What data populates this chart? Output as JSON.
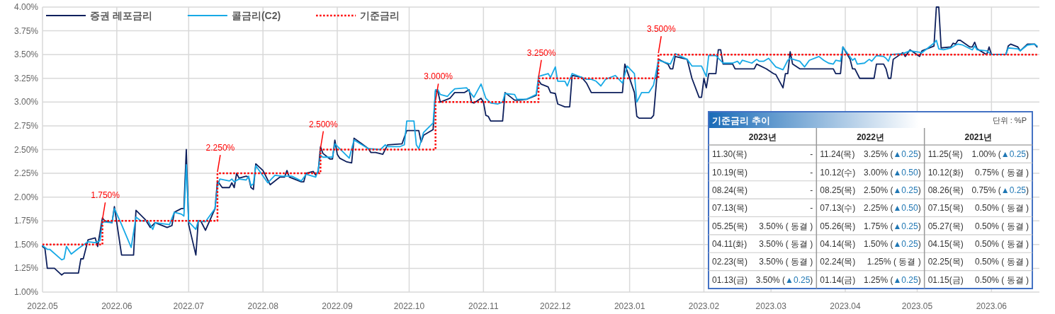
{
  "chart_data": [
    {
      "type": "line",
      "ylim": [
        1,
        4
      ],
      "yticks": [
        {
          "value": 1,
          "label": "1.00%"
        },
        {
          "value": 1.25,
          "label": "1.25%"
        },
        {
          "value": 1.5,
          "label": "1.50%"
        },
        {
          "value": 1.75,
          "label": "1.75%"
        },
        {
          "value": 2,
          "label": "2.00%"
        },
        {
          "value": 2.25,
          "label": "2.25%"
        },
        {
          "value": 2.5,
          "label": "2.50%"
        },
        {
          "value": 2.75,
          "label": "2.75%"
        },
        {
          "value": 3,
          "label": "3.00%"
        },
        {
          "value": 3.25,
          "label": "3.25%"
        },
        {
          "value": 3.5,
          "label": "3.50%"
        },
        {
          "value": 3.75,
          "label": "3.75%"
        },
        {
          "value": 4,
          "label": "4.00%"
        }
      ],
      "xlim": [
        "2022-05-01",
        "2023-06-21"
      ],
      "xticks": [
        {
          "value": "2022-05-01",
          "label": "2022.05"
        },
        {
          "value": "2022-06-01",
          "label": "2022.06"
        },
        {
          "value": "2022-07-01",
          "label": "2022.07"
        },
        {
          "value": "2022-08-01",
          "label": "2022.08"
        },
        {
          "value": "2022-09-01",
          "label": "2022.09"
        },
        {
          "value": "2022-10-01",
          "label": "2022.10"
        },
        {
          "value": "2022-11-01",
          "label": "2022.11"
        },
        {
          "value": "2022-12-01",
          "label": "2022.12"
        },
        {
          "value": "2023-01-01",
          "label": "2023.01"
        },
        {
          "value": "2023-02-01",
          "label": "2023.02"
        },
        {
          "value": "2023-03-01",
          "label": "2023.03"
        },
        {
          "value": "2023-04-01",
          "label": "2023.04"
        },
        {
          "value": "2023-05-01",
          "label": "2023.05"
        },
        {
          "value": "2023-06-01",
          "label": "2023.06"
        }
      ],
      "grid": true,
      "legend": "top left",
      "series": [
        {
          "name": "증권 레포금리",
          "color": "#0d1f5c",
          "x": [
            "2022-05-01",
            "2022-05-02",
            "2022-05-03",
            "2022-05-06",
            "2022-05-09",
            "2022-05-10",
            "2022-05-16",
            "2022-05-17",
            "2022-05-18",
            "2022-05-20",
            "2022-05-23",
            "2022-05-24",
            "2022-05-26",
            "2022-05-27",
            "2022-05-30",
            "2022-05-31",
            "2022-06-03",
            "2022-06-08",
            "2022-06-09",
            "2022-06-13",
            "2022-06-15",
            "2022-06-17",
            "2022-06-22",
            "2022-06-24",
            "2022-06-25",
            "2022-06-28",
            "2022-06-29",
            "2022-06-30",
            "2022-07-01",
            "2022-07-04",
            "2022-07-05",
            "2022-07-06",
            "2022-07-08",
            "2022-07-12",
            "2022-07-13",
            "2022-07-15",
            "2022-07-18",
            "2022-07-19",
            "2022-07-20",
            "2022-07-21",
            "2022-07-22",
            "2022-07-25",
            "2022-07-26",
            "2022-07-27",
            "2022-07-28",
            "2022-07-29",
            "2022-08-01",
            "2022-08-04",
            "2022-08-08",
            "2022-08-10",
            "2022-08-11",
            "2022-08-12",
            "2022-08-17",
            "2022-08-18",
            "2022-08-19",
            "2022-08-22",
            "2022-08-23",
            "2022-08-24",
            "2022-08-25",
            "2022-08-26",
            "2022-08-29",
            "2022-08-30",
            "2022-08-31",
            "2022-09-01",
            "2022-09-02",
            "2022-09-05",
            "2022-09-07",
            "2022-09-08",
            "2022-09-14",
            "2022-09-15",
            "2022-09-17",
            "2022-09-20",
            "2022-09-22",
            "2022-09-28",
            "2022-09-30",
            "2022-10-05",
            "2022-10-06",
            "2022-10-07",
            "2022-10-11",
            "2022-10-12",
            "2022-10-13",
            "2022-10-14",
            "2022-10-17",
            "2022-10-18",
            "2022-10-20",
            "2022-10-24",
            "2022-10-26",
            "2022-10-27",
            "2022-10-28",
            "2022-10-31",
            "2022-11-01",
            "2022-11-02",
            "2022-11-03",
            "2022-11-04",
            "2022-11-09",
            "2022-11-10",
            "2022-11-14",
            "2022-11-16",
            "2022-11-19",
            "2022-11-23",
            "2022-11-24",
            "2022-11-25",
            "2022-11-28",
            "2022-11-29",
            "2022-12-01",
            "2022-12-02",
            "2022-12-05",
            "2022-12-07",
            "2022-12-08",
            "2022-12-12",
            "2022-12-14",
            "2022-12-16",
            "2022-12-29",
            "2022-12-30",
            "2023-01-03",
            "2023-01-04",
            "2023-01-05",
            "2023-01-10",
            "2023-01-11",
            "2023-01-13",
            "2023-01-17",
            "2023-01-18",
            "2023-01-19",
            "2023-01-20",
            "2023-01-25",
            "2023-01-27",
            "2023-01-30",
            "2023-01-31",
            "2023-02-01",
            "2023-02-02",
            "2023-02-03",
            "2023-02-06",
            "2023-02-07",
            "2023-02-08",
            "2023-02-09",
            "2023-02-13",
            "2023-02-14",
            "2023-02-22",
            "2023-02-23",
            "2023-02-27",
            "2023-03-02",
            "2023-03-03",
            "2023-03-06",
            "2023-03-07",
            "2023-03-08",
            "2023-03-09",
            "2023-03-10",
            "2023-03-13",
            "2023-03-27",
            "2023-03-28",
            "2023-03-30",
            "2023-03-31",
            "2023-04-03",
            "2023-04-04",
            "2023-04-05",
            "2023-04-07",
            "2023-04-13",
            "2023-04-14",
            "2023-04-17",
            "2023-04-18",
            "2023-04-19",
            "2023-04-20",
            "2023-04-21",
            "2023-04-25",
            "2023-04-26",
            "2023-04-28",
            "2023-05-02",
            "2023-05-03",
            "2023-05-08",
            "2023-05-09",
            "2023-05-10",
            "2023-05-11",
            "2023-05-15",
            "2023-05-16",
            "2023-05-17",
            "2023-05-18",
            "2023-05-19",
            "2023-05-23",
            "2023-05-24",
            "2023-05-25",
            "2023-05-26",
            "2023-05-30",
            "2023-05-31",
            "2023-06-01",
            "2023-06-02",
            "2023-06-07",
            "2023-06-08",
            "2023-06-09",
            "2023-06-12",
            "2023-06-13",
            "2023-06-16",
            "2023-06-19",
            "2023-06-20"
          ],
          "values": [
            1.48,
            1.46,
            1.25,
            1.25,
            1.18,
            1.2,
            1.2,
            1.35,
            1.35,
            1.55,
            1.57,
            1.48,
            1.78,
            1.75,
            1.73,
            1.9,
            1.39,
            1.39,
            1.86,
            1.76,
            1.68,
            1.73,
            1.68,
            1.7,
            1.84,
            1.88,
            1.88,
            2.5,
            1.71,
            1.39,
            1.75,
            1.75,
            1.65,
            1.88,
            2.17,
            2.1,
            2.1,
            2.15,
            2.1,
            2.25,
            2.2,
            2.22,
            2.21,
            2.1,
            2.08,
            2.35,
            2.28,
            2.13,
            2.21,
            2.21,
            2.28,
            2.21,
            2.16,
            2.16,
            2.25,
            2.27,
            2.23,
            2.26,
            2.53,
            2.46,
            2.4,
            2.4,
            2.6,
            2.45,
            2.41,
            2.37,
            2.36,
            2.62,
            2.51,
            2.47,
            2.47,
            2.45,
            2.55,
            2.56,
            2.7,
            2.7,
            2.58,
            2.65,
            2.71,
            3.12,
            3.11,
            3.0,
            3.03,
            3.04,
            3.1,
            3.1,
            3.13,
            3.0,
            2.99,
            3.04,
            3.0,
            2.86,
            2.85,
            2.8,
            2.8,
            3.1,
            3.02,
            3.02,
            3.03,
            3.07,
            3.23,
            3.19,
            3.16,
            3.1,
            3.09,
            2.98,
            2.95,
            2.95,
            3.28,
            3.26,
            3.2,
            3.1,
            3.1,
            3.4,
            3.1,
            2.85,
            2.83,
            2.83,
            2.86,
            3.45,
            3.4,
            3.35,
            3.35,
            3.48,
            3.45,
            3.25,
            3.05,
            3.05,
            3.25,
            3.15,
            3.3,
            3.3,
            3.55,
            3.55,
            3.4,
            3.4,
            3.35,
            3.35,
            3.4,
            3.35,
            3.3,
            3.29,
            3.15,
            3.3,
            3.3,
            3.53,
            3.4,
            3.35,
            3.35,
            3.3,
            3.3,
            3.58,
            3.45,
            3.35,
            3.35,
            3.25,
            3.25,
            3.4,
            3.4,
            3.35,
            3.25,
            3.25,
            3.45,
            3.52,
            3.48,
            3.55,
            3.48,
            3.54,
            3.59,
            4.0,
            4.0,
            3.57,
            3.58,
            3.62,
            3.61,
            3.65,
            3.65,
            3.58,
            3.58,
            3.63,
            3.56,
            3.5,
            3.58,
            3.5,
            3.5,
            3.5,
            3.59,
            3.61,
            3.58,
            3.54,
            3.61,
            3.61,
            3.58
          ]
        },
        {
          "name": "콜금리(C2)",
          "color": "#17a9e6",
          "x": [
            "2022-05-01",
            "2022-05-03",
            "2022-05-04",
            "2022-05-09",
            "2022-05-10",
            "2022-05-11",
            "2022-05-13",
            "2022-05-16",
            "2022-05-20",
            "2022-05-23",
            "2022-05-25",
            "2022-05-26",
            "2022-05-30",
            "2022-05-31",
            "2022-06-03",
            "2022-06-07",
            "2022-06-09",
            "2022-06-11",
            "2022-06-14",
            "2022-06-16",
            "2022-06-17",
            "2022-06-23",
            "2022-06-25",
            "2022-06-28",
            "2022-06-29",
            "2022-06-30",
            "2022-07-01",
            "2022-07-04",
            "2022-07-05",
            "2022-07-08",
            "2022-07-12",
            "2022-07-13",
            "2022-07-14",
            "2022-07-18",
            "2022-07-19",
            "2022-07-20",
            "2022-07-22",
            "2022-07-25",
            "2022-07-26",
            "2022-07-27",
            "2022-07-28",
            "2022-07-29",
            "2022-08-03",
            "2022-08-06",
            "2022-08-09",
            "2022-08-13",
            "2022-08-17",
            "2022-08-19",
            "2022-08-23",
            "2022-08-24",
            "2022-08-25",
            "2022-08-26",
            "2022-08-30",
            "2022-08-31",
            "2022-09-02",
            "2022-09-06",
            "2022-09-08",
            "2022-09-14",
            "2022-09-19",
            "2022-09-21",
            "2022-09-22",
            "2022-09-27",
            "2022-09-29",
            "2022-09-30",
            "2022-10-03",
            "2022-10-04",
            "2022-10-05",
            "2022-10-07",
            "2022-10-11",
            "2022-10-12",
            "2022-10-13",
            "2022-10-14",
            "2022-10-17",
            "2022-10-18",
            "2022-10-20",
            "2022-10-25",
            "2022-10-28",
            "2022-10-31",
            "2022-11-02",
            "2022-11-04",
            "2022-11-07",
            "2022-11-09",
            "2022-11-10",
            "2022-11-14",
            "2022-11-15",
            "2022-11-19",
            "2022-11-23",
            "2022-11-24",
            "2022-11-28",
            "2022-11-29",
            "2022-12-01",
            "2022-12-02",
            "2022-12-05",
            "2022-12-06",
            "2022-12-08",
            "2022-12-14",
            "2022-12-16",
            "2022-12-18",
            "2022-12-20",
            "2022-12-22",
            "2022-12-26",
            "2022-12-29",
            "2022-12-31",
            "2023-01-03",
            "2023-01-04",
            "2023-01-06",
            "2023-01-09",
            "2023-01-11",
            "2023-01-13",
            "2023-01-18",
            "2023-01-20",
            "2023-01-25",
            "2023-01-27",
            "2023-01-31",
            "2023-02-02",
            "2023-02-03",
            "2023-02-06",
            "2023-02-09",
            "2023-02-13",
            "2023-02-15",
            "2023-02-16",
            "2023-02-17",
            "2023-02-21",
            "2023-02-23",
            "2023-02-24",
            "2023-02-26",
            "2023-02-28",
            "2023-03-03",
            "2023-03-06",
            "2023-03-08",
            "2023-03-09",
            "2023-03-13",
            "2023-03-15",
            "2023-03-17",
            "2023-03-21",
            "2023-03-23",
            "2023-03-25",
            "2023-03-27",
            "2023-03-28",
            "2023-03-30",
            "2023-03-31",
            "2023-04-04",
            "2023-04-05",
            "2023-04-06",
            "2023-04-09",
            "2023-04-11",
            "2023-04-12",
            "2023-04-14",
            "2023-04-17",
            "2023-04-18",
            "2023-04-19",
            "2023-04-20",
            "2023-04-25",
            "2023-04-28",
            "2023-05-03",
            "2023-05-08",
            "2023-05-09",
            "2023-05-10",
            "2023-05-12",
            "2023-05-15",
            "2023-05-17",
            "2023-05-18",
            "2023-05-20",
            "2023-05-24",
            "2023-05-25",
            "2023-05-26",
            "2023-05-30",
            "2023-06-01",
            "2023-06-07",
            "2023-06-08",
            "2023-06-12",
            "2023-06-13",
            "2023-06-16",
            "2023-06-19",
            "2023-06-20"
          ],
          "values": [
            1.49,
            1.45,
            1.45,
            1.34,
            1.35,
            1.48,
            1.4,
            1.46,
            1.53,
            1.52,
            1.54,
            1.74,
            1.73,
            1.88,
            1.71,
            1.47,
            1.79,
            1.75,
            1.75,
            1.66,
            1.73,
            1.71,
            1.84,
            1.82,
            1.8,
            2.34,
            1.74,
            1.66,
            1.75,
            1.74,
            1.88,
            2.11,
            2.19,
            2.17,
            2.19,
            2.16,
            2.19,
            2.18,
            2.22,
            2.12,
            2.14,
            2.33,
            2.15,
            2.23,
            2.22,
            2.22,
            2.17,
            2.24,
            2.21,
            2.28,
            2.44,
            2.42,
            2.42,
            2.56,
            2.51,
            2.41,
            2.6,
            2.51,
            2.5,
            2.55,
            2.53,
            2.53,
            2.55,
            2.8,
            2.8,
            2.55,
            2.51,
            2.68,
            2.78,
            3.13,
            3.13,
            3.08,
            3.06,
            3.09,
            3.14,
            3.15,
            3.05,
            3.19,
            3.04,
            2.99,
            2.98,
            3.0,
            3.09,
            3.08,
            3.03,
            3.03,
            3.08,
            3.27,
            3.3,
            3.26,
            3.37,
            3.22,
            3.22,
            3.17,
            3.3,
            3.24,
            3.24,
            3.22,
            3.17,
            3.24,
            3.28,
            3.2,
            3.38,
            3.3,
            3.0,
            3.1,
            3.1,
            3.18,
            3.44,
            3.4,
            3.51,
            3.45,
            3.38,
            3.38,
            3.27,
            3.49,
            3.49,
            3.41,
            3.41,
            3.43,
            3.4,
            3.44,
            3.41,
            3.45,
            3.43,
            3.43,
            3.46,
            3.37,
            3.34,
            3.44,
            3.46,
            3.43,
            3.37,
            3.44,
            3.48,
            3.44,
            3.41,
            3.4,
            3.44,
            3.43,
            3.58,
            3.44,
            3.46,
            3.4,
            3.41,
            3.45,
            3.43,
            3.49,
            3.48,
            3.46,
            3.43,
            3.5,
            3.51,
            3.54,
            3.52,
            3.62,
            3.65,
            3.56,
            3.55,
            3.57,
            3.6,
            3.61,
            3.6,
            3.55,
            3.59,
            3.55,
            3.54,
            3.5,
            3.5,
            3.57,
            3.56,
            3.54,
            3.6,
            3.61,
            3.59
          ]
        },
        {
          "name": "기준금리",
          "type": "step",
          "line_style": "dotted",
          "color": "#ff0000",
          "x": [
            "2022-05-01",
            "2022-05-26",
            "2022-07-13",
            "2022-08-25",
            "2022-10-12",
            "2022-11-24",
            "2023-01-13",
            "2023-06-20"
          ],
          "values": [
            1.5,
            1.75,
            2.25,
            2.5,
            3.0,
            3.25,
            3.5,
            3.5
          ]
        }
      ],
      "annotations": [
        {
          "text": "1.750%",
          "x": "2022-05-26",
          "y": 1.75
        },
        {
          "text": "2.250%",
          "x": "2022-07-13",
          "y": 2.25
        },
        {
          "text": "2.500%",
          "x": "2022-08-25",
          "y": 2.5
        },
        {
          "text": "3.000%",
          "x": "2022-10-12",
          "y": 3.0
        },
        {
          "text": "3.250%",
          "x": "2022-11-24",
          "y": 3.25
        },
        {
          "text": "3.500%",
          "x": "2023-01-13",
          "y": 3.5
        }
      ]
    },
    {
      "type": "other",
      "title": "기준금리 추이",
      "categories": [
        "2023년",
        "2022년",
        "2021년"
      ],
      "annotations": [
        "단위 : %P",
        "11.30(목)",
        "-",
        "11.24(목)",
        "3.25% (▲0.25)",
        "11.25(목)",
        "1.00% (▲0.25)",
        "10.19(목)",
        "-",
        "10.12(수)",
        "3.00% (▲0.50)",
        "10.12(화)",
        "0.75% ( 동결 )",
        "08.24(목)",
        "-",
        "08.25(목)",
        "2.50% (▲0.25)",
        "08.26(목)",
        "0.75% (▲0.25)",
        "07.13(목)",
        "-",
        "07.13(수)",
        "2.25% (▲0.50)",
        "07.15(목)",
        "0.50% ( 동결 )",
        "05.25(목)",
        "3.50% ( 동결 )",
        "05.26(목)",
        "1.75% (▲0.25)",
        "05.27(목)",
        "0.50% ( 동결 )",
        "04.11(화)",
        "3.50% ( 동결 )",
        "04.14(목)",
        "1.50% (▲0.25)",
        "04.15(목)",
        "0.50% ( 동결 )",
        "02.23(목)",
        "3.50% ( 동결 )",
        "02.24(목)",
        "1.25% ( 동결 )",
        "02.25(목)",
        "0.50% ( 동결 )",
        "01.13(금)",
        "3.50% (▲0.25)",
        "01.14(금)",
        "1.25% (▲0.25)",
        "01.15(금)",
        "0.50% ( 동결 )"
      ]
    }
  ]
}
